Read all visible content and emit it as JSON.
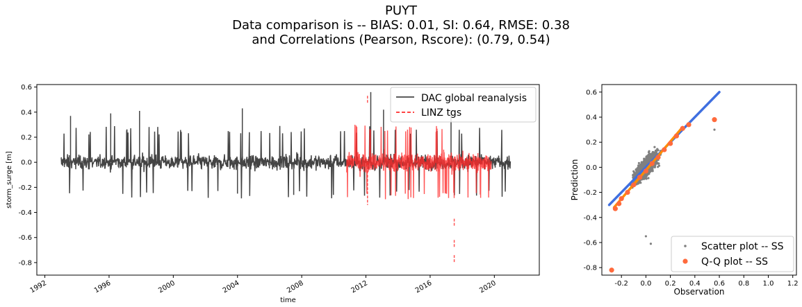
{
  "title_lines": [
    "PUYT",
    "Data comparison is   --   BIAS: 0.01, SI: 0.64, RMSE: 0.38",
    "and Correlations (Pearson, Rscore): (0.79, 0.54)"
  ],
  "chart_data": [
    {
      "type": "line",
      "xlabel": "time",
      "ylabel": "storm_surge [m]",
      "xlim": [
        1991.5,
        2022.8
      ],
      "ylim": [
        -0.9,
        0.62
      ],
      "x_ticks": [
        "1992",
        "1996",
        "2000",
        "2004",
        "2008",
        "2012",
        "2016",
        "2020"
      ],
      "x_tick_values": [
        1992,
        1996,
        2000,
        2004,
        2008,
        2012,
        2016,
        2020
      ],
      "y_ticks": [
        "0.6",
        "0.4",
        "0.2",
        "0.0",
        "-0.2",
        "-0.4",
        "-0.6",
        "-0.8"
      ],
      "y_tick_values": [
        0.6,
        0.4,
        0.2,
        0.0,
        -0.2,
        -0.4,
        -0.6,
        -0.8
      ],
      "legend_position": "top-right",
      "series": [
        {
          "name": "DAC global reanalysis",
          "color": "#444444",
          "style": "solid",
          "x_range": [
            1993.0,
            2021.0
          ],
          "typical_range": [
            -0.2,
            0.2
          ],
          "peaks": [
            {
              "x": 1993.6,
              "y": 0.37
            },
            {
              "x": 1996.1,
              "y": 0.39
            },
            {
              "x": 1997.9,
              "y": 0.41
            },
            {
              "x": 2004.3,
              "y": 0.43
            },
            {
              "x": 2012.3,
              "y": 0.56
            },
            {
              "x": 2013.1,
              "y": 0.42
            },
            {
              "x": 2017.3,
              "y": 0.41
            },
            {
              "x": 2004.0,
              "y": -0.25
            },
            {
              "x": 2007.5,
              "y": -0.26
            }
          ]
        },
        {
          "name": "LINZ tgs",
          "color": "#ff2a2a",
          "style": "dashed",
          "x_range": [
            2010.8,
            2019.8
          ],
          "typical_range": [
            -0.25,
            0.25
          ],
          "peaks": [
            {
              "x": 2012.1,
              "y": 0.47
            },
            {
              "x": 2012.1,
              "y": -0.34
            },
            {
              "x": 2017.5,
              "y": -0.51
            },
            {
              "x": 2017.5,
              "y": -0.68
            },
            {
              "x": 2017.5,
              "y": -0.8
            }
          ]
        }
      ]
    },
    {
      "type": "scatter",
      "xlabel": "Observation",
      "ylabel": "Prediction",
      "xlim": [
        -0.36,
        1.23
      ],
      "ylim": [
        -0.86,
        0.66
      ],
      "x_ticks": [
        "-0.2",
        "0.0",
        "0.2",
        "0.4",
        "0.6",
        "0.8",
        "1.0",
        "1.2"
      ],
      "x_tick_values": [
        -0.2,
        0.0,
        0.2,
        0.4,
        0.6,
        0.8,
        1.0,
        1.2
      ],
      "y_ticks": [
        "0.6",
        "0.4",
        "0.2",
        "0.0",
        "-0.2",
        "-0.4",
        "-0.6",
        "-0.8"
      ],
      "y_tick_values": [
        0.6,
        0.4,
        0.2,
        0.0,
        -0.2,
        -0.4,
        -0.6,
        -0.8
      ],
      "legend_position": "lower-right",
      "series": [
        {
          "name": "Scatter plot -- SS",
          "color": "#808080",
          "cloud_center": [
            0.0,
            0.0
          ],
          "cloud_x_range": [
            -0.27,
            0.4
          ],
          "outliers": [
            [
              0.0,
              -0.55
            ],
            [
              0.04,
              -0.61
            ],
            [
              0.56,
              0.3
            ]
          ]
        },
        {
          "name": "Q-Q plot -- SS",
          "color": "#ff6a3c",
          "points": [
            [
              -0.28,
              -0.82
            ],
            [
              -0.25,
              -0.33
            ],
            [
              -0.22,
              -0.29
            ],
            [
              -0.2,
              -0.25
            ],
            [
              -0.15,
              -0.2
            ],
            [
              -0.1,
              -0.14
            ],
            [
              -0.05,
              -0.08
            ],
            [
              0.0,
              -0.03
            ],
            [
              0.05,
              0.03
            ],
            [
              0.1,
              0.08
            ],
            [
              0.15,
              0.14
            ],
            [
              0.2,
              0.19
            ],
            [
              0.25,
              0.25
            ],
            [
              0.3,
              0.31
            ],
            [
              0.35,
              0.34
            ],
            [
              0.56,
              0.38
            ]
          ]
        }
      ],
      "reference_lines": [
        {
          "color": "#3f6fe0",
          "from": [
            -0.3,
            -0.3
          ],
          "to": [
            0.6,
            0.6
          ]
        },
        {
          "color": "#ff8c00",
          "from": [
            -0.26,
            -0.32
          ],
          "to": [
            0.3,
            0.32
          ]
        }
      ]
    }
  ]
}
